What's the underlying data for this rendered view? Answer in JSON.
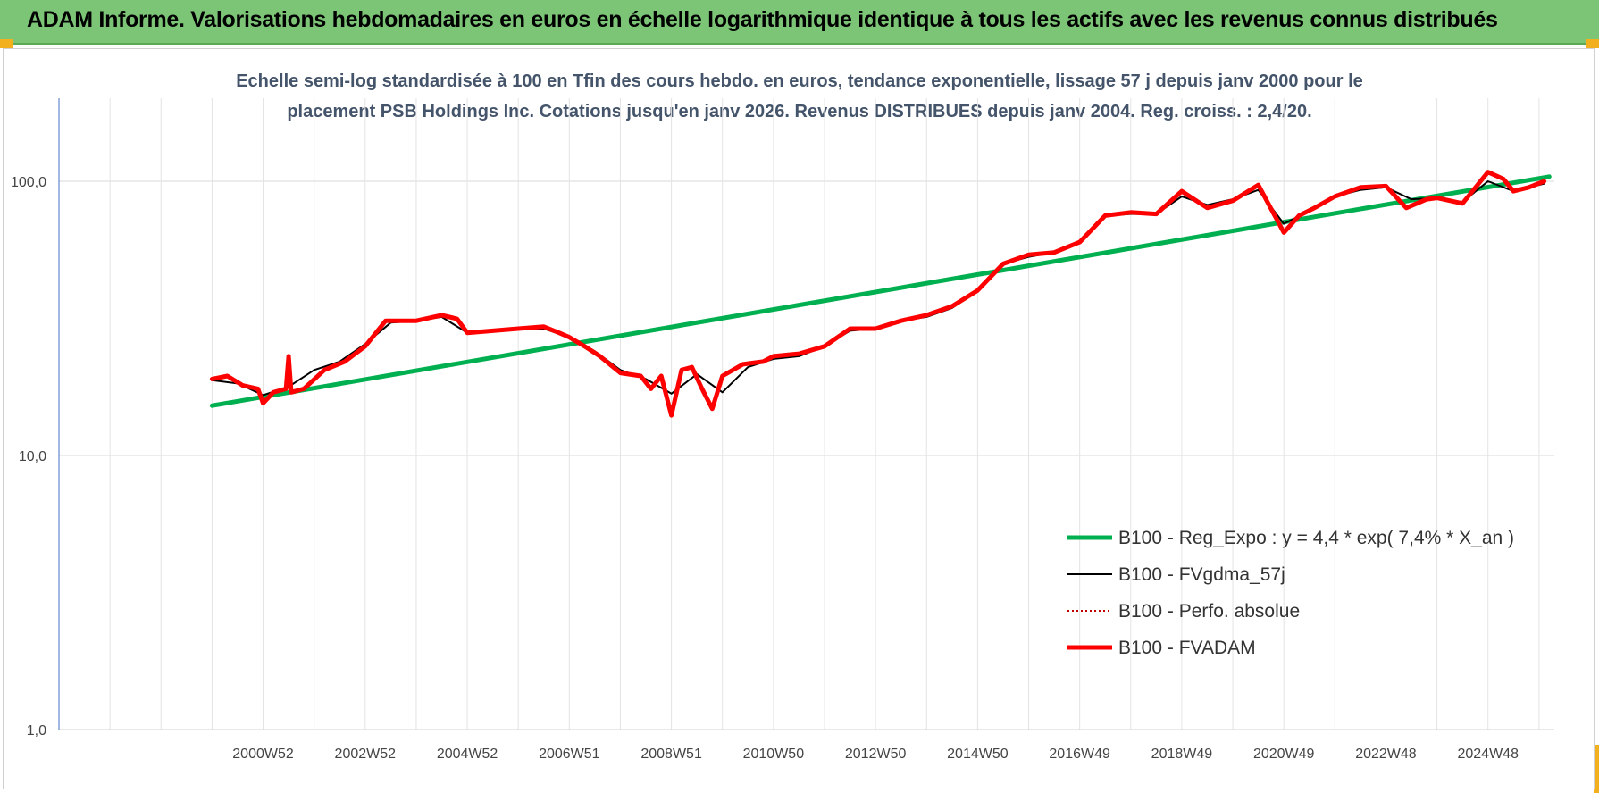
{
  "header": {
    "title": "ADAM Informe. Valorisations hebdomadaires en euros en échelle logarithmique identique à tous les actifs avec les revenus connus distribués"
  },
  "chart_data": {
    "type": "line",
    "title_line1": "Echelle semi-log standardisée à 100 en Tfin des cours hebdo. en euros, tendance exponentielle, lissage 57 j depuis janv 2000 pour le",
    "title_line2": "placement PSB Holdings Inc. Cotations jusqu'en janv 2026.  Revenus DISTRIBUES depuis janv 2004. Reg. croiss. : 2,4/20.",
    "y_scale": "log",
    "ylim": [
      1,
      200
    ],
    "xlim": [
      1997.0,
      2026.3
    ],
    "y_ticks": [
      {
        "value": 1,
        "label": "1,0"
      },
      {
        "value": 10,
        "label": "10,0"
      },
      {
        "value": 100,
        "label": "100,0"
      }
    ],
    "x_ticks": [
      {
        "value": 2001.0,
        "label": "2000W52"
      },
      {
        "value": 2003.0,
        "label": "2002W52"
      },
      {
        "value": 2005.0,
        "label": "2004W52"
      },
      {
        "value": 2007.0,
        "label": "2006W51"
      },
      {
        "value": 2009.0,
        "label": "2008W51"
      },
      {
        "value": 2011.0,
        "label": "2010W50"
      },
      {
        "value": 2013.0,
        "label": "2012W50"
      },
      {
        "value": 2015.0,
        "label": "2014W50"
      },
      {
        "value": 2017.0,
        "label": "2016W49"
      },
      {
        "value": 2019.0,
        "label": "2018W49"
      },
      {
        "value": 2021.0,
        "label": "2020W49"
      },
      {
        "value": 2023.0,
        "label": "2022W48"
      },
      {
        "value": 2025.0,
        "label": "2024W48"
      }
    ],
    "grid": "vertical",
    "legend_position": "bottom-right",
    "series": [
      {
        "name": "B100 - Reg_Expo : y = 4,4 * exp( 7,4% *  X_an )",
        "color": "#00b050",
        "style": "solid-thick",
        "x": [
          2000.0,
          2026.2
        ],
        "values": [
          15.2,
          104.0
        ]
      },
      {
        "name": "B100 - FVgdma_57j",
        "color": "#000000",
        "style": "solid-thin",
        "x": [
          2000.0,
          2000.5,
          2001.0,
          2001.5,
          2002.0,
          2002.5,
          2003.0,
          2003.5,
          2004.0,
          2004.5,
          2005.0,
          2005.5,
          2006.0,
          2006.5,
          2007.0,
          2007.5,
          2008.0,
          2008.5,
          2009.0,
          2009.5,
          2010.0,
          2010.5,
          2011.0,
          2011.5,
          2012.0,
          2012.5,
          2013.0,
          2013.5,
          2014.0,
          2014.5,
          2015.0,
          2015.5,
          2016.0,
          2016.5,
          2017.0,
          2017.5,
          2018.0,
          2018.5,
          2019.0,
          2019.5,
          2020.0,
          2020.5,
          2021.0,
          2021.5,
          2022.0,
          2022.5,
          2023.0,
          2023.5,
          2024.0,
          2024.5,
          2025.0,
          2025.5,
          2026.1
        ],
        "values": [
          18.8,
          18.3,
          16.6,
          17.8,
          20.5,
          22.0,
          25.5,
          30.5,
          31.0,
          32.0,
          28.0,
          28.3,
          29.0,
          29.0,
          27.0,
          24.0,
          20.5,
          19.0,
          16.8,
          19.8,
          17.0,
          21.0,
          22.5,
          23.0,
          25.0,
          28.5,
          29.0,
          31.0,
          32.0,
          34.5,
          40.0,
          50.0,
          53.0,
          55.0,
          60.0,
          75.0,
          76.0,
          76.0,
          88.0,
          82.0,
          86.0,
          93.0,
          70.0,
          78.0,
          88.0,
          93.0,
          95.0,
          86.0,
          87.0,
          84.0,
          100.0,
          92.0,
          98.0
        ]
      },
      {
        "name": "B100 - Perfo. absolue",
        "color": "#c00000",
        "style": "dotted"
      },
      {
        "name": "B100 - FVADAM",
        "color": "#ff0000",
        "style": "solid-thick",
        "x": [
          2000.0,
          2000.3,
          2000.6,
          2000.9,
          2001.0,
          2001.2,
          2001.45,
          2001.5,
          2001.55,
          2001.8,
          2002.2,
          2002.6,
          2003.0,
          2003.4,
          2003.6,
          2004.0,
          2004.5,
          2004.8,
          2005.0,
          2005.5,
          2006.0,
          2006.5,
          2006.8,
          2007.0,
          2007.3,
          2007.6,
          2008.0,
          2008.4,
          2008.6,
          2008.8,
          2009.0,
          2009.2,
          2009.4,
          2009.6,
          2009.8,
          2010.0,
          2010.4,
          2010.8,
          2011.0,
          2011.5,
          2012.0,
          2012.5,
          2013.0,
          2013.5,
          2014.0,
          2014.5,
          2015.0,
          2015.5,
          2016.0,
          2016.5,
          2017.0,
          2017.5,
          2018.0,
          2018.5,
          2019.0,
          2019.5,
          2020.0,
          2020.5,
          2021.0,
          2021.3,
          2021.6,
          2022.0,
          2022.5,
          2023.0,
          2023.4,
          2023.8,
          2024.0,
          2024.5,
          2025.0,
          2025.3,
          2025.5,
          2025.8,
          2026.1
        ],
        "values": [
          19.0,
          19.5,
          18.0,
          17.5,
          15.5,
          17.0,
          17.5,
          23.0,
          17.0,
          17.5,
          20.5,
          22.0,
          25.0,
          31.0,
          31.0,
          31.0,
          32.5,
          31.5,
          28.0,
          28.5,
          29.0,
          29.5,
          28.0,
          27.0,
          25.0,
          23.0,
          20.0,
          19.5,
          17.5,
          19.5,
          14.0,
          20.5,
          21.0,
          17.5,
          14.8,
          19.5,
          21.5,
          22.0,
          23.0,
          23.5,
          25.0,
          29.0,
          29.0,
          31.0,
          32.5,
          35.0,
          40.0,
          50.0,
          54.0,
          55.0,
          60.0,
          75.0,
          77.0,
          76.0,
          92.0,
          80.0,
          85.0,
          97.0,
          65.0,
          75.0,
          80.0,
          88.0,
          95.0,
          96.0,
          80.0,
          86.0,
          87.0,
          83.0,
          108.0,
          102.0,
          92.0,
          95.0,
          100.0
        ]
      }
    ]
  }
}
